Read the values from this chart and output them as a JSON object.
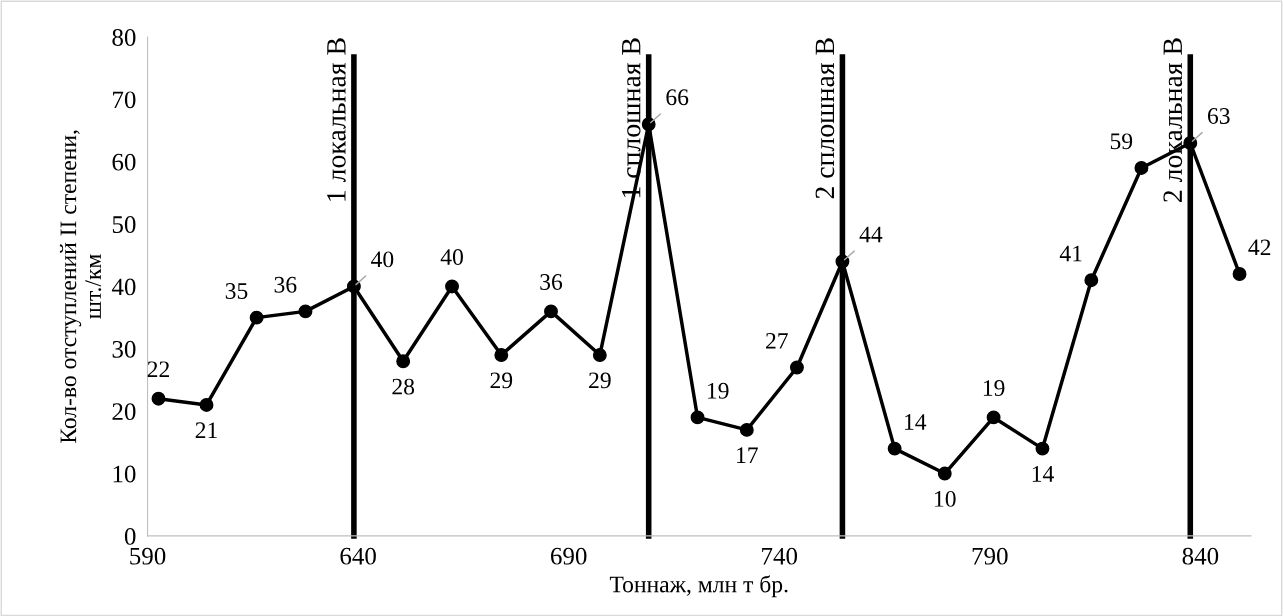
{
  "chart_data": {
    "type": "line",
    "xlabel": "Тоннаж, млн т бр.",
    "ylabel": "Кол-во отступлений II степени,\nшт./км",
    "x": [
      592.6,
      604,
      615.9,
      627.5,
      639,
      650.7,
      662.3,
      674,
      685.8,
      697.4,
      709,
      720.6,
      732.3,
      744.2,
      755,
      767.4,
      779.3,
      790.9,
      802.5,
      814.1,
      826,
      837.6,
      849.3
    ],
    "series": [
      {
        "color": "#000000",
        "values": [
          22,
          21,
          35,
          36,
          40,
          28,
          40,
          29,
          36,
          29,
          66,
          19,
          17,
          27,
          44,
          14,
          10,
          19,
          14,
          41,
          59,
          63,
          42
        ]
      }
    ],
    "xlim": [
      590,
      852
    ],
    "xticks": [
      590,
      640,
      690,
      740,
      790,
      840
    ],
    "ylim": [
      0,
      80
    ],
    "yticks": [
      0,
      10,
      20,
      30,
      40,
      50,
      60,
      70,
      80
    ],
    "marker": "circle",
    "line_style": "solid",
    "data_labels": true,
    "grid": false,
    "ref_lines": [
      {
        "axis": "x",
        "value": 639,
        "label": "1 локальная В",
        "color": "#000000"
      },
      {
        "axis": "x",
        "value": 709,
        "label": "1 сплошная В",
        "color": "#000000"
      },
      {
        "axis": "x",
        "value": 755,
        "label": "2 сплошная В",
        "color": "#000000"
      },
      {
        "axis": "x",
        "value": 837.6,
        "label": "2 локальная В",
        "color": "#000000"
      }
    ]
  }
}
